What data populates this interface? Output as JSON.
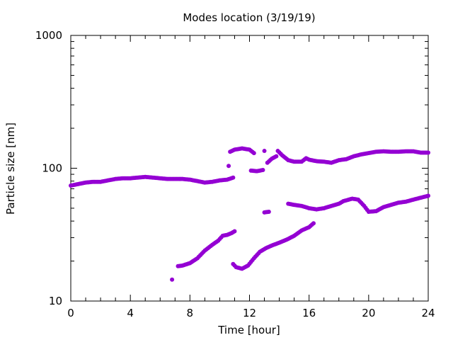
{
  "chart_data": {
    "type": "scatter",
    "title": "Modes location (3/19/19)",
    "xlabel": "Time [hour]",
    "ylabel": "Particle size [nm]",
    "xlim": [
      0,
      24
    ],
    "ylim": [
      10,
      1000
    ],
    "yscale": "log",
    "grid": false,
    "legend": "none",
    "x_ticks": [
      0,
      4,
      8,
      12,
      16,
      20,
      24
    ],
    "x_tick_labels": [
      "0",
      "4",
      "8",
      "12",
      "16",
      "20",
      "24"
    ],
    "y_ticks": [
      10,
      100,
      1000
    ],
    "y_tick_labels": [
      "10",
      "100",
      "1000"
    ],
    "marker_color": "#9400d3",
    "series": [
      {
        "points": [
          [
            0,
            74
          ],
          [
            0.5,
            76
          ],
          [
            1,
            78
          ],
          [
            1.5,
            79
          ],
          [
            2,
            79
          ],
          [
            2.5,
            81
          ],
          [
            3,
            83
          ],
          [
            3.5,
            84
          ],
          [
            4,
            84
          ],
          [
            4.5,
            85
          ],
          [
            5,
            86
          ],
          [
            5.5,
            85
          ],
          [
            6,
            84
          ],
          [
            6.5,
            83
          ],
          [
            7,
            83
          ],
          [
            7.5,
            83
          ],
          [
            8,
            82
          ],
          [
            8.5,
            80
          ],
          [
            9,
            78
          ],
          [
            9.5,
            79
          ],
          [
            10,
            81
          ],
          [
            10.5,
            82
          ],
          [
            10.9,
            85
          ],
          [
            10.6,
            104
          ],
          [
            10.7,
            133
          ],
          [
            11,
            138
          ],
          [
            11.5,
            141
          ],
          [
            12,
            138
          ],
          [
            12.3,
            130
          ],
          [
            12.1,
            96
          ],
          [
            12.5,
            95
          ],
          [
            12.9,
            97
          ],
          [
            13.0,
            135
          ],
          [
            13.2,
            110
          ],
          [
            13.5,
            118
          ],
          [
            13.8,
            123
          ],
          [
            13.9,
            135
          ],
          [
            14.2,
            125
          ],
          [
            14.6,
            115
          ],
          [
            15,
            112
          ],
          [
            15.5,
            112
          ],
          [
            15.8,
            119
          ],
          [
            16,
            116
          ],
          [
            16.5,
            113
          ],
          [
            17,
            112
          ],
          [
            17.5,
            110
          ],
          [
            18,
            115
          ],
          [
            18.5,
            117
          ],
          [
            19,
            123
          ],
          [
            19.5,
            127
          ],
          [
            20,
            130
          ],
          [
            20.5,
            133
          ],
          [
            21,
            134
          ],
          [
            21.5,
            133
          ],
          [
            22,
            133
          ],
          [
            22.5,
            134
          ],
          [
            23,
            134
          ],
          [
            23.5,
            131
          ],
          [
            24,
            131
          ]
        ]
      },
      {
        "points": [
          [
            6.8,
            14.5
          ],
          [
            7.2,
            18.3
          ],
          [
            7.5,
            18.5
          ],
          [
            8,
            19.3
          ],
          [
            8.5,
            21
          ],
          [
            9,
            24
          ],
          [
            9.5,
            26.5
          ],
          [
            9.9,
            28.5
          ],
          [
            10.2,
            31
          ],
          [
            10.5,
            31.5
          ],
          [
            10.8,
            32.5
          ],
          [
            11.0,
            33.5
          ],
          [
            10.9,
            19
          ],
          [
            11.1,
            18
          ],
          [
            11.5,
            17.5
          ],
          [
            11.9,
            18.5
          ],
          [
            12.3,
            21
          ],
          [
            12.7,
            23.5
          ],
          [
            13.1,
            25
          ],
          [
            13.5,
            26.2
          ],
          [
            14,
            27.5
          ],
          [
            14.5,
            29
          ],
          [
            15,
            31
          ],
          [
            15.5,
            34
          ],
          [
            16,
            36
          ],
          [
            16.3,
            38.5
          ],
          [
            13.0,
            46.5
          ],
          [
            13.3,
            47
          ],
          [
            14.6,
            54
          ],
          [
            15,
            53
          ],
          [
            15.5,
            52
          ],
          [
            16,
            50
          ],
          [
            16.5,
            49
          ],
          [
            17,
            50
          ],
          [
            17.5,
            52
          ],
          [
            18,
            54
          ],
          [
            18.3,
            56.5
          ],
          [
            18.9,
            59
          ],
          [
            19.3,
            58
          ],
          [
            19.7,
            52
          ],
          [
            20,
            47
          ],
          [
            20.5,
            47.5
          ],
          [
            21,
            51
          ],
          [
            21.5,
            53
          ],
          [
            22,
            55
          ],
          [
            22.5,
            56
          ],
          [
            23,
            58
          ],
          [
            23.5,
            60
          ],
          [
            24,
            62
          ]
        ]
      }
    ]
  }
}
